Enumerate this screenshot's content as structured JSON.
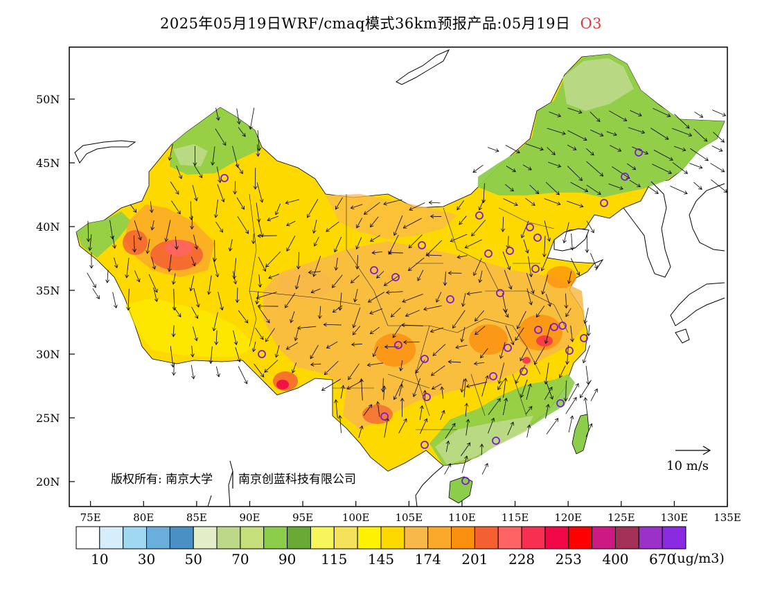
{
  "title": "2025年05月19日WRF/cmaq模式36km预报产品:05月19日",
  "pollutant": "O3",
  "lat_labels": [
    "50N",
    "45N",
    "40N",
    "35N",
    "30N",
    "25N",
    "20N"
  ],
  "lon_labels": [
    "75E",
    "80E",
    "85E",
    "90E",
    "95E",
    "100E",
    "105E",
    "110E",
    "115E",
    "120E",
    "125E",
    "130E",
    "135E"
  ],
  "copyright": "版权所有: 南京大学",
  "company": "南京创蓝科技有限公司",
  "wind_ref": "10 m/s",
  "colorbar": {
    "colors": [
      "#ffffff",
      "#d6eefb",
      "#a0d8f2",
      "#6aaedb",
      "#4a90c4",
      "#e3edc7",
      "#bcd98a",
      "#c5e07a",
      "#8ccd4c",
      "#6aa935",
      "#f6f65a",
      "#f5e25a",
      "#fef200",
      "#fdd900",
      "#f9b84a",
      "#fba92a",
      "#fb8f0e",
      "#f36032",
      "#ff6464",
      "#f72f50",
      "#f20846",
      "#ff0000",
      "#cc1a82",
      "#a33057",
      "#9b32c8",
      "#8a2be2"
    ],
    "labels": [
      "10",
      "30",
      "50",
      "70",
      "90",
      "115",
      "145",
      "174",
      "201",
      "228",
      "253",
      "400",
      "670"
    ],
    "unit": "(ug/m3)"
  }
}
